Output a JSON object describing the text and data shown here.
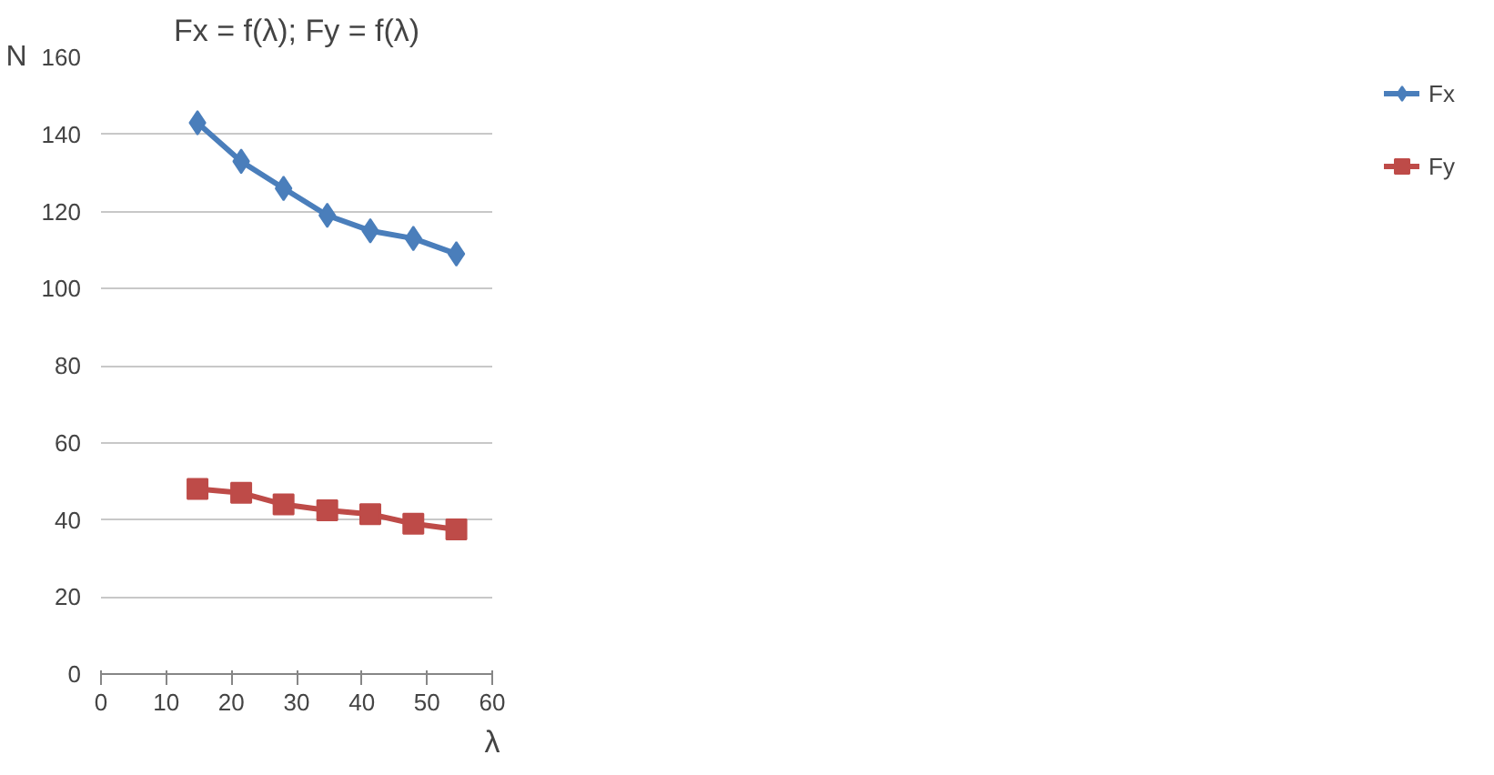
{
  "chart_data": {
    "type": "line",
    "title": "Fx = f(λ); Fy = f(λ)",
    "xlabel": "λ",
    "ylabel": "N",
    "x": [
      14.8,
      21.5,
      28.0,
      34.7,
      41.3,
      47.9,
      54.5
    ],
    "series": [
      {
        "name": "Fx",
        "color": "#4a7ebb",
        "marker": "diamond",
        "values": [
          143,
          133,
          126,
          119,
          115,
          113,
          109
        ]
      },
      {
        "name": "Fy",
        "color": "#be4b48",
        "marker": "square",
        "values": [
          48,
          47,
          44,
          42.5,
          41.5,
          39,
          37.5
        ]
      }
    ],
    "xlim": [
      0,
      60
    ],
    "xticks": [
      0,
      10,
      20,
      30,
      40,
      50,
      60
    ],
    "ylim": [
      0,
      160
    ],
    "yticks": [
      0,
      20,
      40,
      60,
      80,
      100,
      120,
      140,
      160
    ],
    "grid": "y",
    "legend": "right",
    "line_style": "solid"
  }
}
